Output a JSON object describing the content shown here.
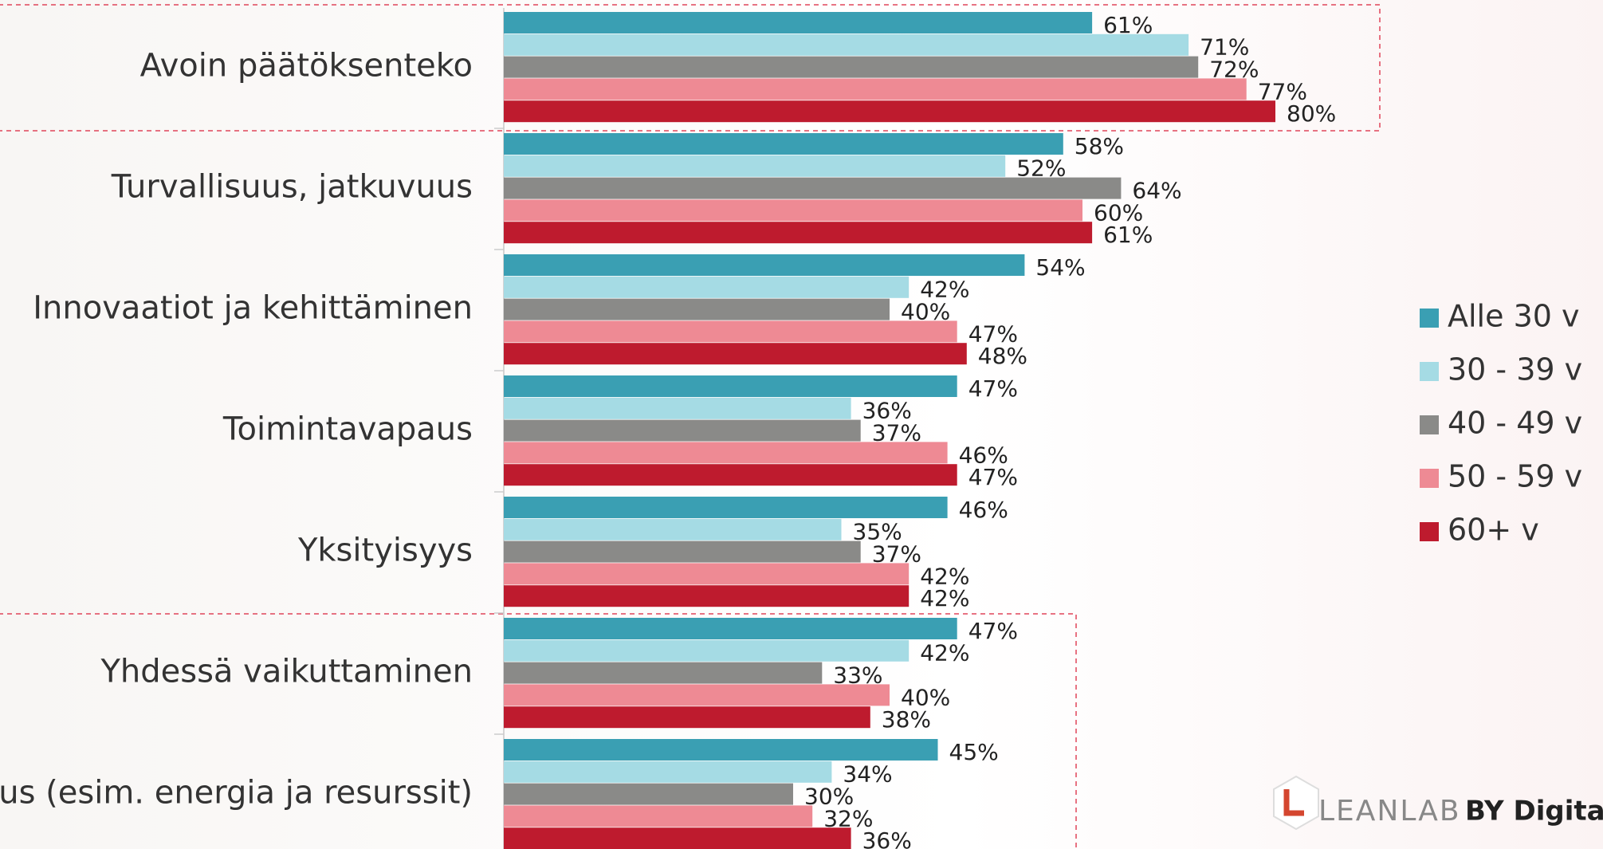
{
  "chart_data": {
    "type": "barh",
    "categories": [
      "Avoin päätöksenteko",
      "Turvallisuus, jatkuvuus",
      "Innovaatiot ja kehittäminen",
      "Toimintavapaus",
      "Yksityisyys",
      "Yhdessä vaikuttaminen",
      "uus (esim. energia ja resurssit)"
    ],
    "series": [
      {
        "name": "Alle 30 v",
        "color": "#3a9fb3",
        "values": [
          61,
          58,
          54,
          47,
          46,
          47,
          45
        ],
        "value_labels": [
          "61%",
          "58%",
          "54%",
          "47%",
          "46%",
          "47%",
          "45%"
        ]
      },
      {
        "name": "30 - 39 v",
        "color": "#a5dbe4",
        "values": [
          71,
          52,
          42,
          36,
          35,
          42,
          34
        ],
        "value_labels": [
          "71%",
          "52%",
          "42%",
          "36%",
          "35%",
          "42%",
          "34%"
        ]
      },
      {
        "name": "40 - 49 v",
        "color": "#8a8a88",
        "values": [
          72,
          64,
          40,
          37,
          37,
          33,
          30
        ],
        "value_labels": [
          "72%",
          "64%",
          "40%",
          "37%",
          "37%",
          "33%",
          "30%"
        ]
      },
      {
        "name": "50 - 59 v",
        "color": "#ee8a94",
        "values": [
          77,
          60,
          47,
          46,
          42,
          40,
          32
        ],
        "value_labels": [
          "77%",
          "60%",
          "47%",
          "46%",
          "42%",
          "40%",
          "32%"
        ]
      },
      {
        "name": "60+ v",
        "color": "#be1b2e",
        "values": [
          80,
          61,
          48,
          47,
          42,
          38,
          36
        ],
        "value_labels": [
          "80%",
          "61%",
          "48%",
          "47%",
          "42%",
          "38%",
          "36%"
        ]
      }
    ],
    "logo": {
      "brand": "LEANLAB",
      "by": "BY Digitalis"
    }
  }
}
